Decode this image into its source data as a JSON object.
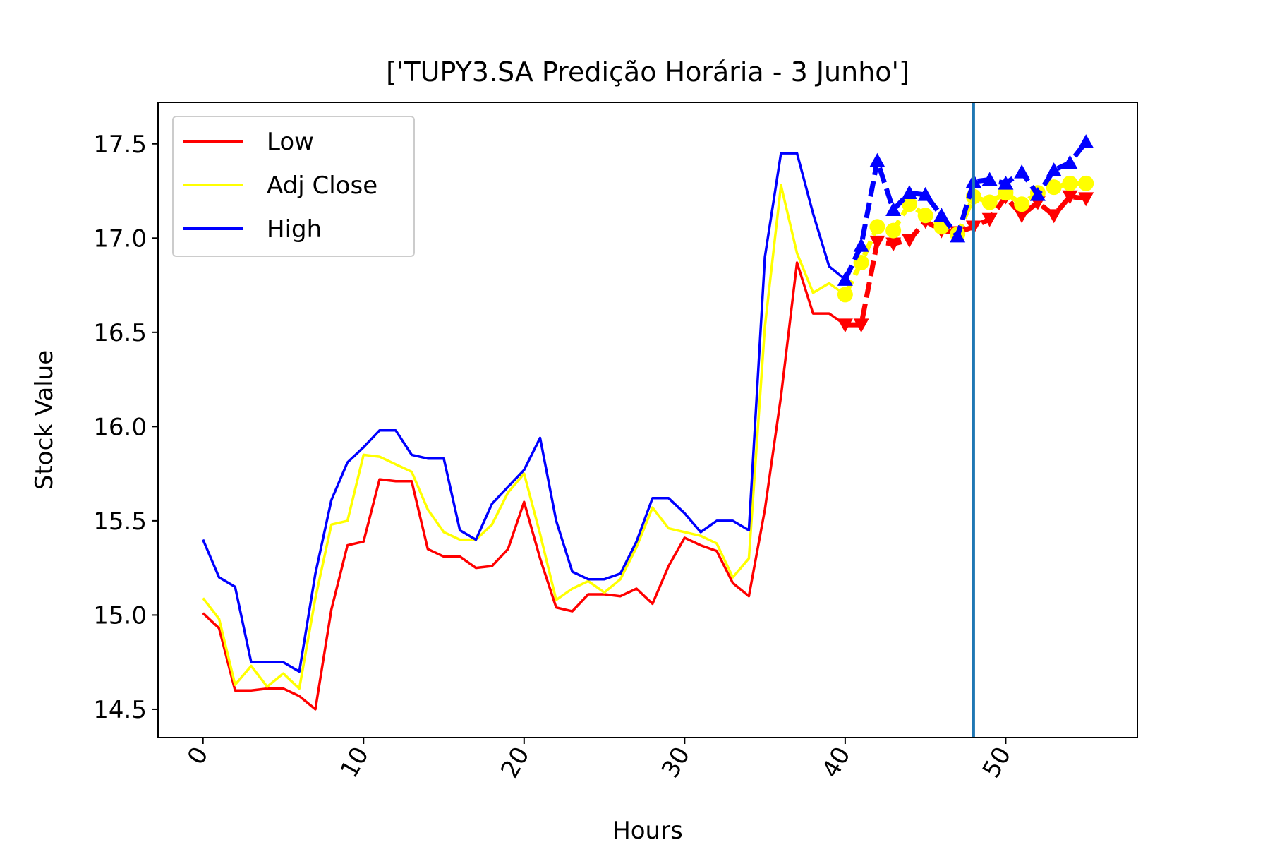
{
  "chart_data": {
    "type": "line",
    "title": "['TUPY3.SA Predição Horária - 3 Junho']",
    "xlabel": "Hours",
    "ylabel": "Stock Value",
    "xlim": [
      -2.8,
      58.2
    ],
    "ylim": [
      14.35,
      17.72
    ],
    "xticks": [
      0,
      10,
      20,
      30,
      40,
      50
    ],
    "xtick_labels": [
      "0",
      "10",
      "20",
      "30",
      "40",
      "50"
    ],
    "yticks": [
      14.5,
      15.0,
      15.5,
      16.0,
      16.5,
      17.0,
      17.5
    ],
    "ytick_labels": [
      "14.5",
      "15.0",
      "15.5",
      "16.0",
      "16.5",
      "17.0",
      "17.5"
    ],
    "grid": false,
    "legend_position": "upper-left",
    "vertical_line": {
      "x": 48,
      "color": "#1f77b4"
    },
    "series": [
      {
        "name": "Low",
        "color": "#ff0000",
        "x": [
          0,
          1,
          2,
          3,
          4,
          5,
          6,
          7,
          8,
          9,
          10,
          11,
          12,
          13,
          14,
          15,
          16,
          17,
          18,
          19,
          20,
          21,
          22,
          23,
          24,
          25,
          26,
          27,
          28,
          29,
          30,
          31,
          32,
          33,
          34,
          35,
          36,
          37,
          38,
          39,
          40
        ],
        "values": [
          15.01,
          14.93,
          14.6,
          14.6,
          14.61,
          14.61,
          14.57,
          14.5,
          15.03,
          15.37,
          15.39,
          15.72,
          15.71,
          15.71,
          15.35,
          15.31,
          15.31,
          15.25,
          15.26,
          15.35,
          15.6,
          15.3,
          15.04,
          15.02,
          15.11,
          15.11,
          15.1,
          15.14,
          15.06,
          15.26,
          15.41,
          15.37,
          15.34,
          15.17,
          15.1,
          15.56,
          16.16,
          16.87,
          16.6,
          16.6,
          16.54
        ]
      },
      {
        "name": "Adj Close",
        "color": "#ffff00",
        "x": [
          0,
          1,
          2,
          3,
          4,
          5,
          6,
          7,
          8,
          9,
          10,
          11,
          12,
          13,
          14,
          15,
          16,
          17,
          18,
          19,
          20,
          21,
          22,
          23,
          24,
          25,
          26,
          27,
          28,
          29,
          30,
          31,
          32,
          33,
          34,
          35,
          36,
          37,
          38,
          39,
          40
        ],
        "values": [
          15.09,
          14.98,
          14.63,
          14.73,
          14.62,
          14.69,
          14.61,
          15.09,
          15.48,
          15.5,
          15.85,
          15.84,
          15.8,
          15.76,
          15.56,
          15.44,
          15.4,
          15.4,
          15.48,
          15.65,
          15.75,
          15.43,
          15.08,
          15.14,
          15.18,
          15.12,
          15.19,
          15.36,
          15.57,
          15.46,
          15.44,
          15.42,
          15.38,
          15.2,
          15.3,
          16.53,
          17.28,
          16.92,
          16.71,
          16.76,
          16.7
        ]
      },
      {
        "name": "High",
        "color": "#0000ff",
        "x": [
          0,
          1,
          2,
          3,
          4,
          5,
          6,
          7,
          8,
          9,
          10,
          11,
          12,
          13,
          14,
          15,
          16,
          17,
          18,
          19,
          20,
          21,
          22,
          23,
          24,
          25,
          26,
          27,
          28,
          29,
          30,
          31,
          32,
          33,
          34,
          35,
          36,
          37,
          38,
          39,
          40
        ],
        "values": [
          15.4,
          15.2,
          15.15,
          14.75,
          14.75,
          14.75,
          14.7,
          15.22,
          15.61,
          15.81,
          15.89,
          15.98,
          15.98,
          15.85,
          15.83,
          15.83,
          15.45,
          15.4,
          15.59,
          15.68,
          15.77,
          15.94,
          15.5,
          15.23,
          15.19,
          15.19,
          15.22,
          15.39,
          15.62,
          15.62,
          15.54,
          15.44,
          15.5,
          15.5,
          15.45,
          16.9,
          17.45,
          17.45,
          17.13,
          16.85,
          16.78
        ]
      }
    ],
    "prediction_series": [
      {
        "name": "Low",
        "color": "#ff0000",
        "marker": "triangle-down",
        "x": [
          40,
          41,
          42,
          43,
          44,
          45,
          46,
          47,
          48,
          49,
          50,
          51,
          52,
          53,
          54,
          55
        ],
        "values": [
          16.54,
          16.54,
          16.98,
          16.97,
          16.99,
          17.09,
          17.04,
          17.03,
          17.06,
          17.1,
          17.22,
          17.12,
          17.19,
          17.12,
          17.22,
          17.21
        ]
      },
      {
        "name": "Adj Close",
        "color": "#ffff00",
        "marker": "circle",
        "x": [
          40,
          41,
          42,
          43,
          44,
          45,
          46,
          47,
          48,
          49,
          50,
          51,
          52,
          53,
          54,
          55
        ],
        "values": [
          16.7,
          16.87,
          17.06,
          17.04,
          17.18,
          17.12,
          17.06,
          17.02,
          17.22,
          17.19,
          17.24,
          17.18,
          17.24,
          17.27,
          17.29,
          17.29
        ]
      },
      {
        "name": "High",
        "color": "#0000ff",
        "marker": "triangle-up",
        "x": [
          40,
          41,
          42,
          43,
          44,
          45,
          46,
          47,
          48,
          49,
          50,
          51,
          52,
          53,
          54,
          55
        ],
        "values": [
          16.78,
          16.96,
          17.41,
          17.15,
          17.24,
          17.23,
          17.12,
          17.01,
          17.3,
          17.31,
          17.29,
          17.35,
          17.23,
          17.36,
          17.4,
          17.51
        ]
      }
    ]
  }
}
